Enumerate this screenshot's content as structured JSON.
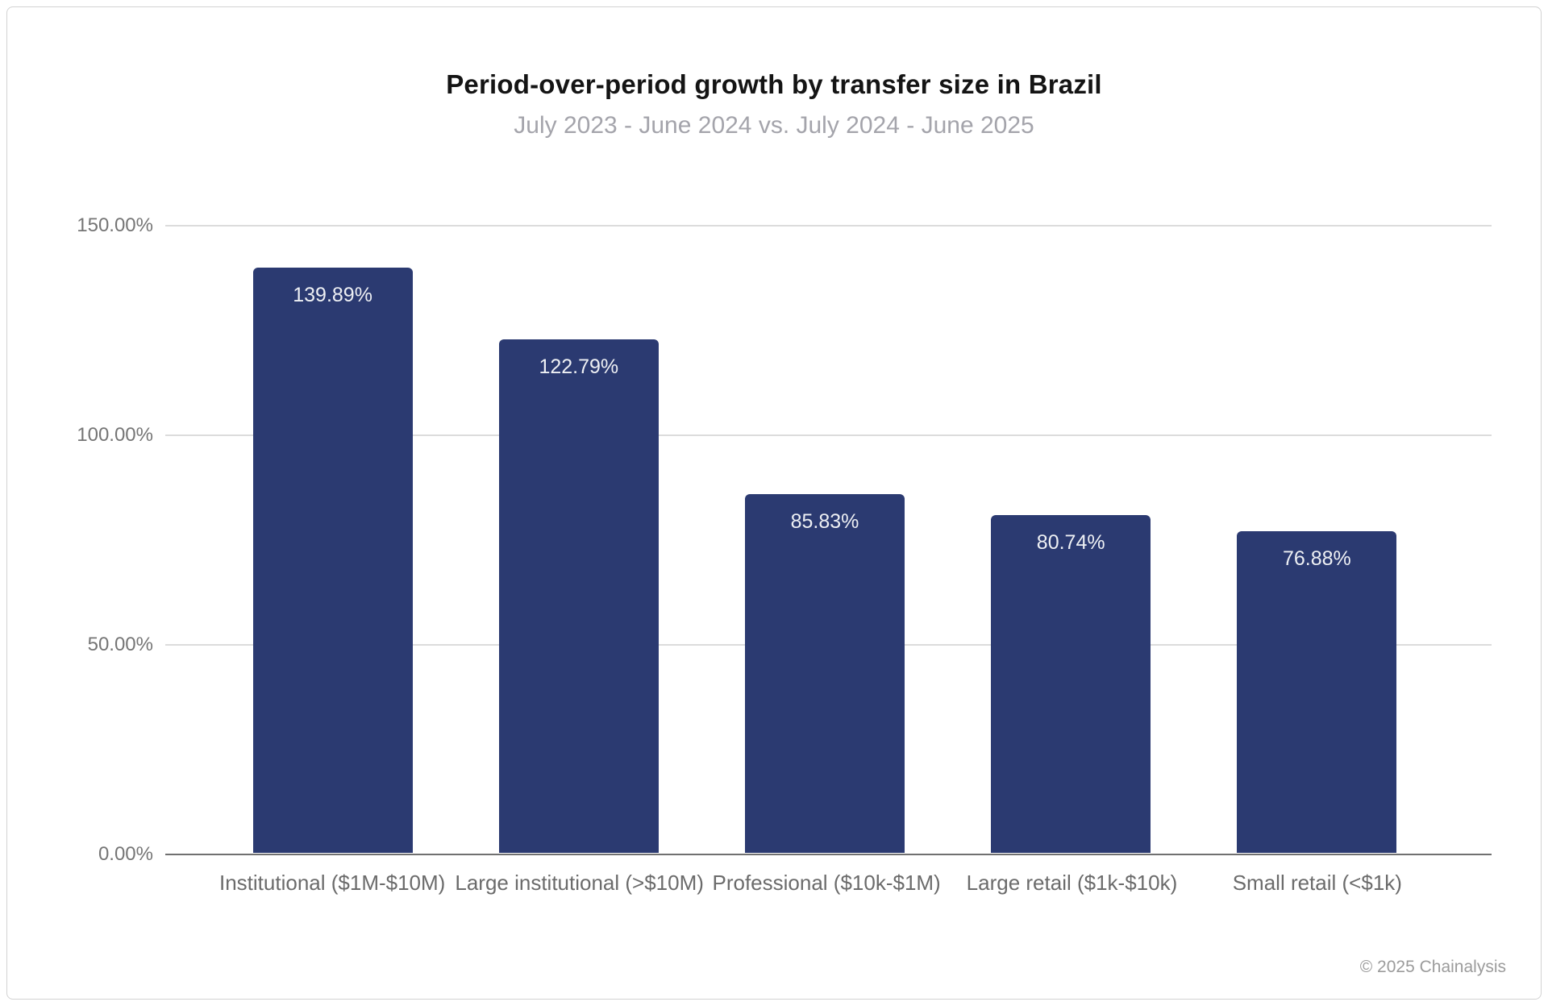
{
  "page": {
    "title": "Period-over-period growth by transfer size in Brazil",
    "subtitle": "July 2023 - June 2024 vs. July 2024 - June 2025",
    "copyright": "© 2025 Chainalysis"
  },
  "colors": {
    "bar_fill": "#2b3a71",
    "bar_label_text": "#eef0f4",
    "gridline": "#dcdcdc",
    "axis_line": "#707070",
    "ytick_text": "#757575",
    "category_text": "#6b6b6b",
    "title_text": "#141414",
    "subtitle_text": "#a4a4ab",
    "copyright_text": "#9b9b9b",
    "background": "#ffffff",
    "frame_border": "#d2d2d2"
  },
  "chart_data": {
    "type": "bar",
    "title": "Period-over-period growth by transfer size in Brazil",
    "subtitle": "July 2023 - June 2024 vs. July 2024 - June 2025",
    "categories": [
      "Institutional ($1M-$10M)",
      "Large institutional (>$10M)",
      "Professional ($10k-$1M)",
      "Large retail ($1k-$10k)",
      "Small retail (<$1k)"
    ],
    "values": [
      139.89,
      122.79,
      85.83,
      80.74,
      76.88
    ],
    "value_labels": [
      "139.89%",
      "122.79%",
      "85.83%",
      "80.74%",
      "76.88%"
    ],
    "xlabel": "",
    "ylabel": "",
    "ylim": [
      0,
      150
    ],
    "ytick_values": [
      0,
      50,
      100,
      150
    ],
    "ytick_labels": [
      "0.00%",
      "50.00%",
      "100.00%",
      "150.00%"
    ],
    "grid": true,
    "legend": false,
    "bar_orientation": "vertical",
    "value_label_position": "inside-top"
  }
}
